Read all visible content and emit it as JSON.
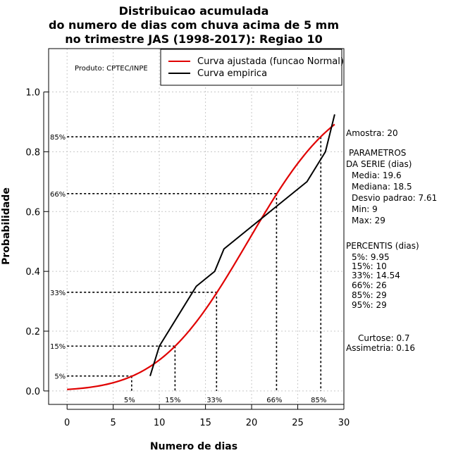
{
  "chart_data": {
    "type": "line",
    "title": [
      "Distribuicao acumulada",
      "do numero de dias com chuva acima de 5 mm",
      "no trimestre JAS (1998-2017): Regiao 10"
    ],
    "xlabel": "Numero de dias",
    "ylabel": "Probabilidade",
    "xlim": [
      -2,
      30
    ],
    "ylim": [
      -0.045,
      1.145
    ],
    "x_ticks": [
      0,
      5,
      10,
      15,
      20,
      25,
      30
    ],
    "y_ticks": [
      "0.0",
      "0.2",
      "0.4",
      "0.6",
      "0.8",
      "1.0"
    ],
    "grid": true,
    "legend_position": "top-right",
    "series": [
      {
        "name": "Curva ajustada (funcao Normal)",
        "color": "#e00000",
        "kind": "normal_cdf",
        "mean": 19.6,
        "sd": 7.61,
        "x_range": [
          0,
          29
        ]
      },
      {
        "name": "Curva empirica",
        "color": "#000000",
        "x": [
          9,
          10,
          14,
          16,
          17,
          20,
          22,
          26,
          28,
          29
        ],
        "y": [
          0.05,
          0.15,
          0.35,
          0.4,
          0.475,
          0.55,
          0.6,
          0.7,
          0.8,
          0.925
        ]
      }
    ],
    "percentile_lines": [
      {
        "label": "5%",
        "x": 7.0,
        "y": 0.05
      },
      {
        "label": "15%",
        "x": 11.7,
        "y": 0.15
      },
      {
        "label": "33%",
        "x": 16.2,
        "y": 0.33
      },
      {
        "label": "66%",
        "x": 22.7,
        "y": 0.66
      },
      {
        "label": "85%",
        "x": 27.5,
        "y": 0.85
      }
    ],
    "annotation": "Produto: CPTEC/INPE",
    "stats_panel": {
      "sample": "Amostra: 20",
      "params_header": [
        "PARAMETROS",
        "DA SERIE (dias)"
      ],
      "params": [
        "Media: 19.6",
        "Mediana: 18.5",
        "Desvio padrao: 7.61",
        "Min: 9",
        "Max: 29"
      ],
      "percentiles_header": "PERCENTIS (dias)",
      "percentiles": [
        "5%: 9.95",
        "15%: 10",
        "33%: 14.54",
        "66%: 26",
        "85%: 29",
        "95%: 29"
      ],
      "kurtosis": "Curtose: 0.7",
      "skewness": "Assimetria: 0.16"
    }
  }
}
